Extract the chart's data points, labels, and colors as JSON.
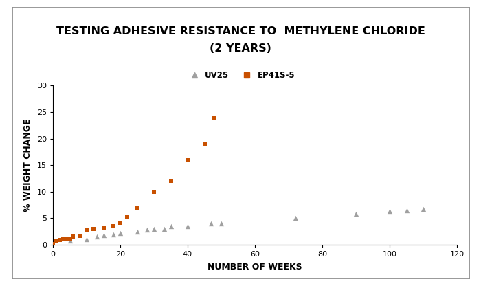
{
  "title_line1": "TESTING ADHESIVE RESISTANCE TO  METHYLENE CHLORIDE",
  "title_line2": "(2 YEARS)",
  "xlabel": "NUMBER OF WEEKS",
  "ylabel": "% WEIGHT CHANGE",
  "xlim": [
    0,
    120
  ],
  "ylim": [
    0,
    30
  ],
  "xticks": [
    0,
    20,
    40,
    60,
    80,
    100,
    120
  ],
  "yticks": [
    0,
    5,
    10,
    15,
    20,
    25,
    30
  ],
  "uv25_x": [
    5,
    10,
    13,
    15,
    18,
    20,
    25,
    28,
    30,
    33,
    35,
    40,
    47,
    50,
    72,
    90,
    100,
    105,
    110
  ],
  "uv25_y": [
    0.8,
    1.0,
    1.5,
    1.8,
    2.0,
    2.2,
    2.5,
    2.8,
    3.0,
    3.0,
    3.5,
    3.5,
    4.0,
    4.0,
    5.0,
    5.8,
    6.3,
    6.5,
    6.7
  ],
  "ep41s5_x": [
    0,
    1,
    2,
    3,
    4,
    5,
    6,
    8,
    10,
    12,
    15,
    18,
    20,
    22,
    25,
    30,
    35,
    40,
    45,
    48
  ],
  "ep41s5_y": [
    0.1,
    0.7,
    0.9,
    1.0,
    1.1,
    1.2,
    1.5,
    1.7,
    2.8,
    3.0,
    3.2,
    3.5,
    4.2,
    5.3,
    7.0,
    10.0,
    12.0,
    16.0,
    19.0,
    24.0
  ],
  "uv25_color": "#a0a0a0",
  "ep41s5_color": "#c85000",
  "background_color": "#ffffff",
  "outer_bg": "#ffffff",
  "border_color": "#888888",
  "title_fontsize": 11.5,
  "axis_label_fontsize": 9,
  "legend_fontsize": 8.5,
  "tick_labelsize": 8
}
